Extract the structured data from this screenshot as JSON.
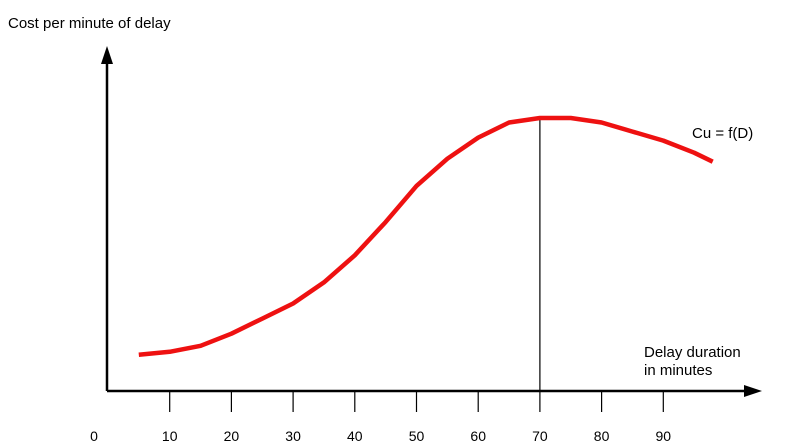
{
  "chart_data": {
    "type": "line",
    "ylabel": "Cost per minute of delay",
    "xlabel_line1": "Delay duration",
    "xlabel_line2": "in minutes",
    "xticks": [
      0,
      10,
      20,
      30,
      40,
      50,
      60,
      70,
      80,
      90
    ],
    "xlim": [
      0,
      100
    ],
    "series": [
      {
        "name": "Cu = f(D)",
        "color": "#ee1111",
        "x": [
          5,
          10,
          15,
          20,
          25,
          30,
          35,
          40,
          45,
          50,
          55,
          60,
          65,
          70,
          75,
          80,
          85,
          90,
          95,
          98
        ],
        "y": [
          0.12,
          0.13,
          0.15,
          0.19,
          0.24,
          0.29,
          0.36,
          0.45,
          0.56,
          0.68,
          0.77,
          0.84,
          0.89,
          0.905,
          0.905,
          0.89,
          0.86,
          0.83,
          0.79,
          0.76
        ]
      }
    ],
    "reference_line": {
      "x": 70
    }
  }
}
